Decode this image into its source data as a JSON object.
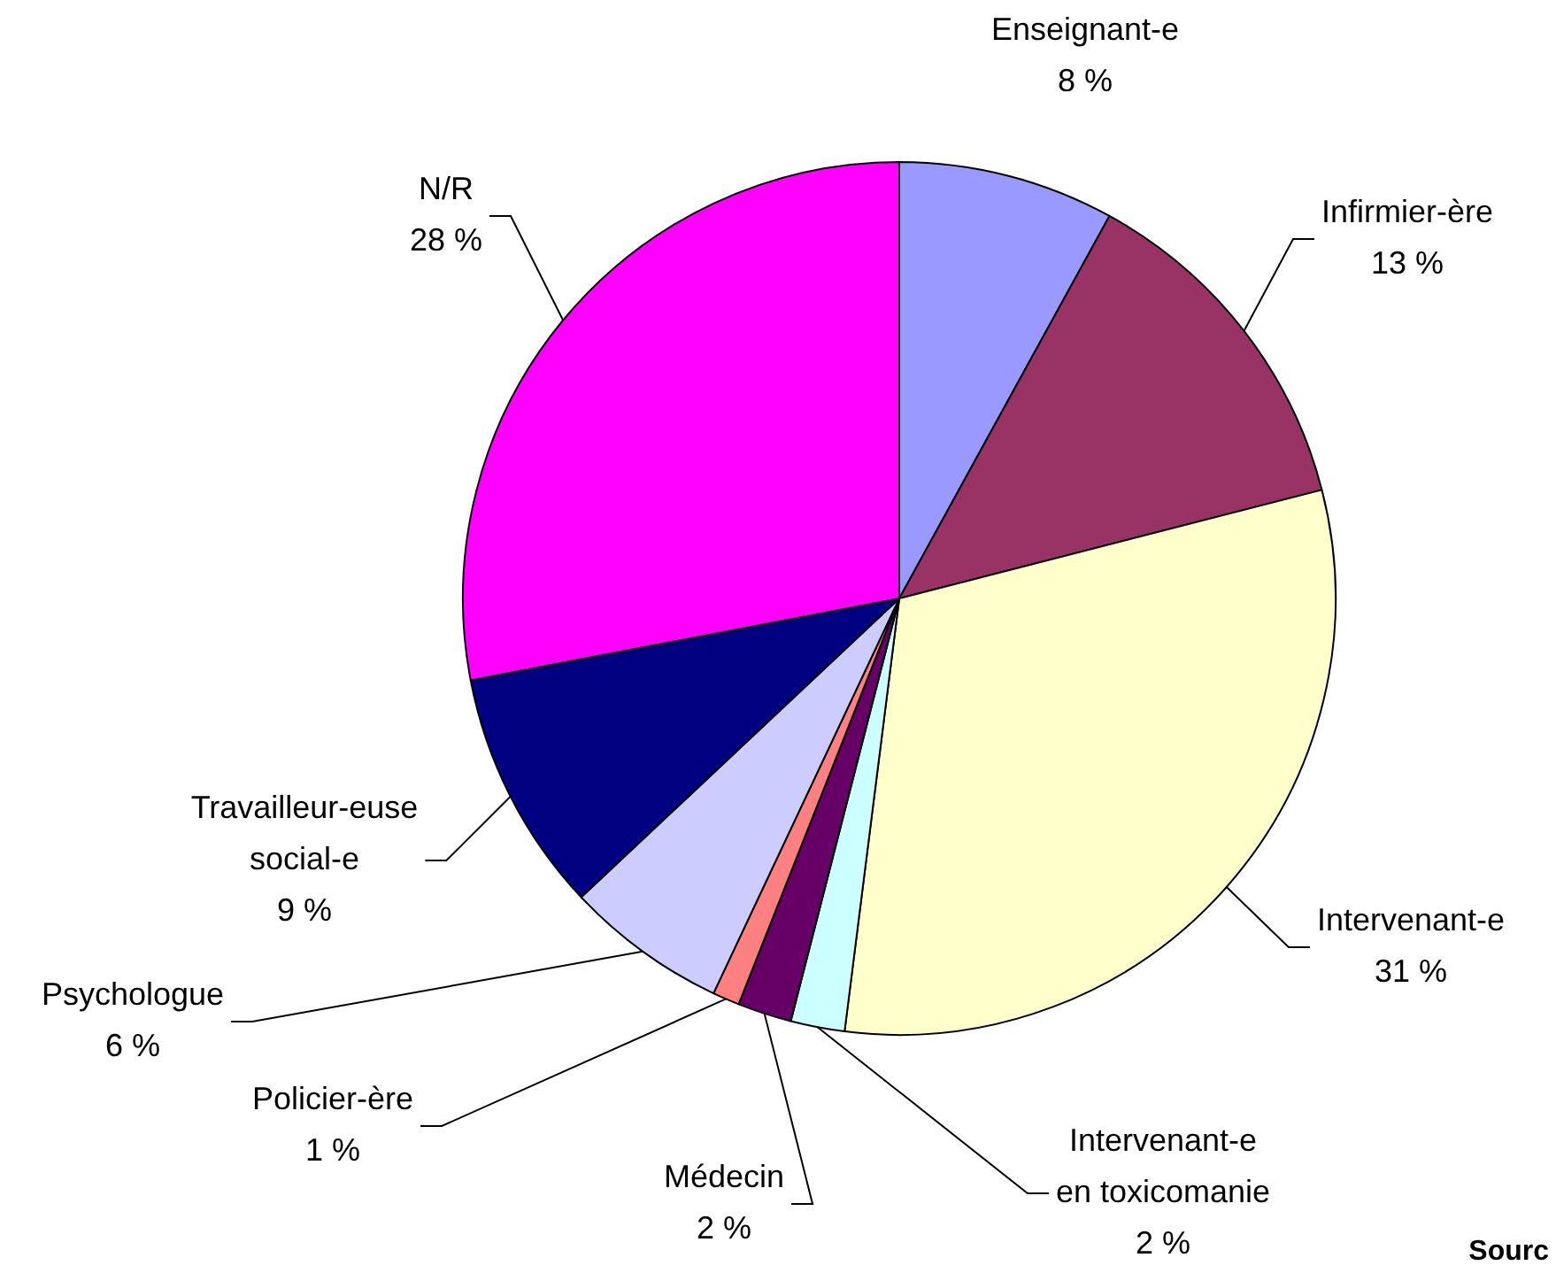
{
  "chart_data": {
    "type": "pie",
    "categories": [
      "Enseignant-e",
      "Infirmier-ère",
      "Intervenant-e",
      "Intervenant-e en toxicomanie",
      "Médecin",
      "Policier-ère",
      "Psychologue",
      "Travailleur-euse social-e",
      "N/R"
    ],
    "values": [
      8,
      13,
      31,
      2,
      2,
      1,
      6,
      9,
      28
    ],
    "colors": [
      "#9999ff",
      "#993366",
      "#ffffcc",
      "#ccffff",
      "#660066",
      "#ff8080",
      "#ccccff",
      "#000080",
      "#ff00ff"
    ],
    "value_labels": [
      "8 %",
      "13 %",
      "31 %",
      "2 %",
      "2 %",
      "1 %",
      "6 %",
      "9 %",
      "28 %"
    ],
    "legend": false,
    "annotations": [
      "Sourc"
    ]
  }
}
